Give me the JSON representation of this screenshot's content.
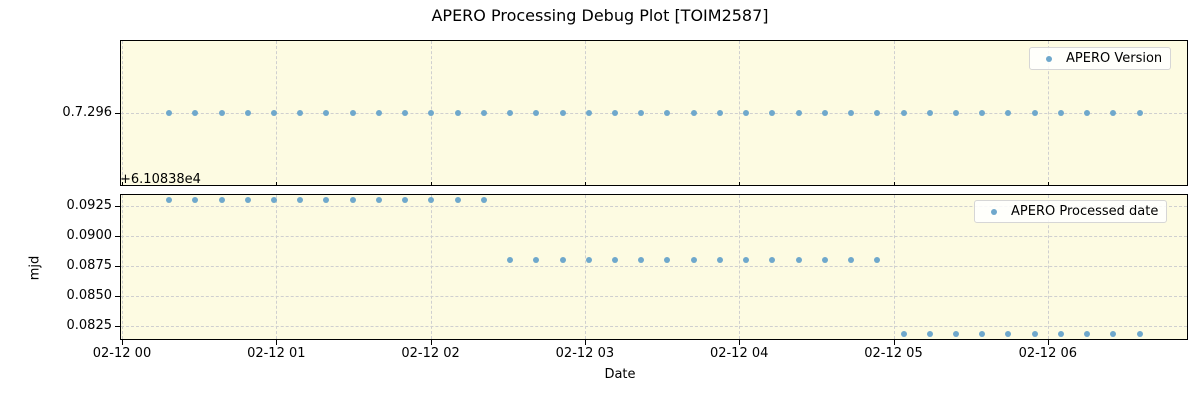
{
  "figure": {
    "title": "APERO Processing Debug Plot [TOIM2587]",
    "xlabel": "Date",
    "x_ticks": [
      "02-12 00",
      "02-12 01",
      "02-12 02",
      "02-12 03",
      "02-12 04",
      "02-12 05",
      "02-12 06"
    ],
    "colors": {
      "background": "#fdfbe2",
      "marker": "#6fa8cc",
      "grid": "#cfcfcf"
    }
  },
  "chart_data": [
    {
      "type": "scatter",
      "title": "",
      "xlabel": "",
      "ylabel": "",
      "legend": [
        "APERO Version"
      ],
      "legend_position": "upper right",
      "grid": true,
      "y_ticks": [
        "0.7.296"
      ],
      "x_hours": [
        0.305,
        0.475,
        0.645,
        0.815,
        0.985,
        1.155,
        1.325,
        1.495,
        1.665,
        1.835,
        2.005,
        2.175,
        2.345,
        2.515,
        2.685,
        2.855,
        3.025,
        3.195,
        3.365,
        3.535,
        3.705,
        3.875,
        4.045,
        4.215,
        4.385,
        4.555,
        4.725,
        4.895,
        5.065,
        5.235,
        5.405,
        5.575,
        5.745,
        5.915,
        6.085,
        6.255,
        6.425,
        6.595
      ],
      "series": [
        {
          "name": "APERO Version",
          "values": [
            "0.7.296",
            "0.7.296",
            "0.7.296",
            "0.7.296",
            "0.7.296",
            "0.7.296",
            "0.7.296",
            "0.7.296",
            "0.7.296",
            "0.7.296",
            "0.7.296",
            "0.7.296",
            "0.7.296",
            "0.7.296",
            "0.7.296",
            "0.7.296",
            "0.7.296",
            "0.7.296",
            "0.7.296",
            "0.7.296",
            "0.7.296",
            "0.7.296",
            "0.7.296",
            "0.7.296",
            "0.7.296",
            "0.7.296",
            "0.7.296",
            "0.7.296",
            "0.7.296",
            "0.7.296",
            "0.7.296",
            "0.7.296",
            "0.7.296",
            "0.7.296",
            "0.7.296",
            "0.7.296",
            "0.7.296",
            "0.7.296"
          ]
        }
      ]
    },
    {
      "type": "scatter",
      "title": "",
      "xlabel": "Date",
      "ylabel": "mjd",
      "y_offset_label": "+6.10838e4",
      "legend": [
        "APERO Processed date"
      ],
      "legend_position": "upper right",
      "grid": true,
      "y_ticks": [
        "0.0825",
        "0.0850",
        "0.0875",
        "0.0900",
        "0.0925"
      ],
      "ylim": [
        0.0813,
        0.0935
      ],
      "x_hours": [
        0.305,
        0.475,
        0.645,
        0.815,
        0.985,
        1.155,
        1.325,
        1.495,
        1.665,
        1.835,
        2.005,
        2.175,
        2.345,
        2.515,
        2.685,
        2.855,
        3.025,
        3.195,
        3.365,
        3.535,
        3.705,
        3.875,
        4.045,
        4.215,
        4.385,
        4.555,
        4.725,
        4.895,
        5.065,
        5.235,
        5.405,
        5.575,
        5.745,
        5.915,
        6.085,
        6.255,
        6.425,
        6.595
      ],
      "series": [
        {
          "name": "APERO Processed date",
          "values": [
            0.093,
            0.093,
            0.093,
            0.093,
            0.093,
            0.093,
            0.093,
            0.093,
            0.093,
            0.093,
            0.093,
            0.093,
            0.093,
            0.088,
            0.088,
            0.088,
            0.088,
            0.088,
            0.088,
            0.088,
            0.088,
            0.088,
            0.088,
            0.088,
            0.088,
            0.088,
            0.088,
            0.088,
            0.0818,
            0.0818,
            0.0818,
            0.0818,
            0.0818,
            0.0818,
            0.0818,
            0.0818,
            0.0818,
            0.0818
          ]
        }
      ]
    }
  ]
}
